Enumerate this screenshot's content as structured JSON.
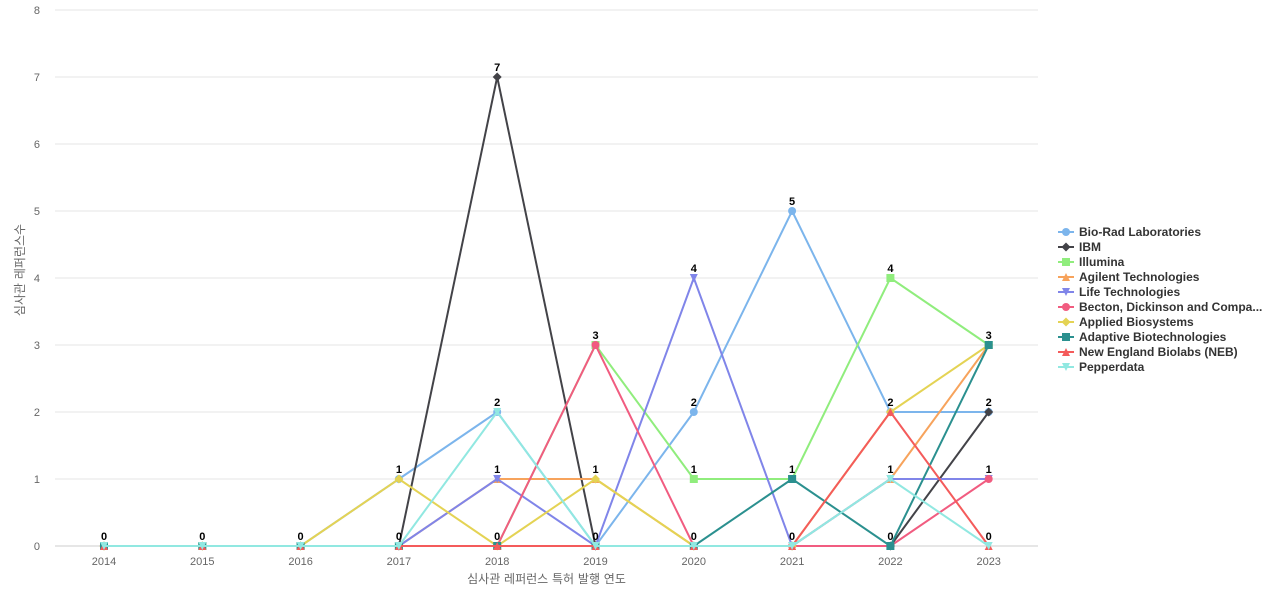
{
  "chart_data": {
    "type": "line",
    "xlabel": "심사관 레퍼런스 특허 발행 연도",
    "ylabel": "심사관 레퍼런스수",
    "categories": [
      "2014",
      "2015",
      "2016",
      "2017",
      "2018",
      "2019",
      "2020",
      "2021",
      "2022",
      "2023"
    ],
    "ylim": [
      0,
      8
    ],
    "yticks": [
      0,
      1,
      2,
      3,
      4,
      5,
      6,
      7,
      8
    ],
    "grid": true,
    "legend_position": "right",
    "series": [
      {
        "name": "Bio-Rad Laboratories",
        "color": "#7cb5ec",
        "marker": "circle",
        "values": [
          0,
          0,
          0,
          1,
          2,
          0,
          2,
          5,
          2,
          2
        ]
      },
      {
        "name": "IBM",
        "color": "#434348",
        "marker": "diamond",
        "values": [
          0,
          0,
          0,
          0,
          7,
          0,
          0,
          0,
          0,
          2
        ]
      },
      {
        "name": "Illumina",
        "color": "#90ed7d",
        "marker": "square",
        "values": [
          0,
          0,
          0,
          0,
          0,
          3,
          1,
          1,
          4,
          3
        ]
      },
      {
        "name": "Agilent Technologies",
        "color": "#f7a35c",
        "marker": "triangle",
        "values": [
          0,
          0,
          0,
          0,
          1,
          1,
          0,
          0,
          1,
          3
        ]
      },
      {
        "name": "Life Technologies",
        "color": "#8085e9",
        "marker": "triangle-down",
        "values": [
          0,
          0,
          0,
          0,
          1,
          0,
          4,
          0,
          1,
          1
        ]
      },
      {
        "name": "Becton, Dickinson and Compa...",
        "color": "#f15c80",
        "marker": "circle",
        "values": [
          0,
          0,
          0,
          0,
          0,
          3,
          0,
          0,
          0,
          1
        ]
      },
      {
        "name": "Applied Biosystems",
        "color": "#e4d354",
        "marker": "diamond",
        "values": [
          0,
          0,
          0,
          1,
          0,
          1,
          0,
          0,
          2,
          3
        ]
      },
      {
        "name": "Adaptive Biotechnologies",
        "color": "#2b908f",
        "marker": "square",
        "values": [
          0,
          0,
          0,
          0,
          0,
          0,
          0,
          1,
          0,
          3
        ]
      },
      {
        "name": "New England Biolabs (NEB)",
        "color": "#f45b5b",
        "marker": "triangle",
        "values": [
          0,
          0,
          0,
          0,
          0,
          0,
          0,
          0,
          2,
          0
        ]
      },
      {
        "name": "Pepperdata",
        "color": "#91e8e1",
        "marker": "triangle-down",
        "values": [
          0,
          0,
          0,
          0,
          2,
          0,
          0,
          0,
          1,
          0
        ]
      }
    ],
    "data_labels": [
      {
        "category": "2014",
        "value": 0,
        "text": "0"
      },
      {
        "category": "2015",
        "value": 0,
        "text": "0"
      },
      {
        "category": "2016",
        "value": 0,
        "text": "0"
      },
      {
        "category": "2017",
        "value": 1,
        "text": "1"
      },
      {
        "category": "2017",
        "value": 0,
        "text": "0"
      },
      {
        "category": "2018",
        "value": 7,
        "text": "7"
      },
      {
        "category": "2018",
        "value": 2,
        "text": "2"
      },
      {
        "category": "2018",
        "value": 1,
        "text": "1"
      },
      {
        "category": "2018",
        "value": 0,
        "text": "0"
      },
      {
        "category": "2019",
        "value": 3,
        "text": "3"
      },
      {
        "category": "2019",
        "value": 1,
        "text": "1"
      },
      {
        "category": "2019",
        "value": 0,
        "text": "0"
      },
      {
        "category": "2020",
        "value": 4,
        "text": "4"
      },
      {
        "category": "2020",
        "value": 2,
        "text": "2"
      },
      {
        "category": "2020",
        "value": 1,
        "text": "1"
      },
      {
        "category": "2020",
        "value": 0,
        "text": "0"
      },
      {
        "category": "2021",
        "value": 5,
        "text": "5"
      },
      {
        "category": "2021",
        "value": 1,
        "text": "1"
      },
      {
        "category": "2021",
        "value": 0,
        "text": "0"
      },
      {
        "category": "2022",
        "value": 4,
        "text": "4"
      },
      {
        "category": "2022",
        "value": 2,
        "text": "2"
      },
      {
        "category": "2022",
        "value": 1,
        "text": "1"
      },
      {
        "category": "2022",
        "value": 0,
        "text": "0"
      },
      {
        "category": "2023",
        "value": 3,
        "text": "3"
      },
      {
        "category": "2023",
        "value": 2,
        "text": "2"
      },
      {
        "category": "2023",
        "value": 1,
        "text": "1"
      },
      {
        "category": "2023",
        "value": 0,
        "text": "0"
      }
    ]
  }
}
